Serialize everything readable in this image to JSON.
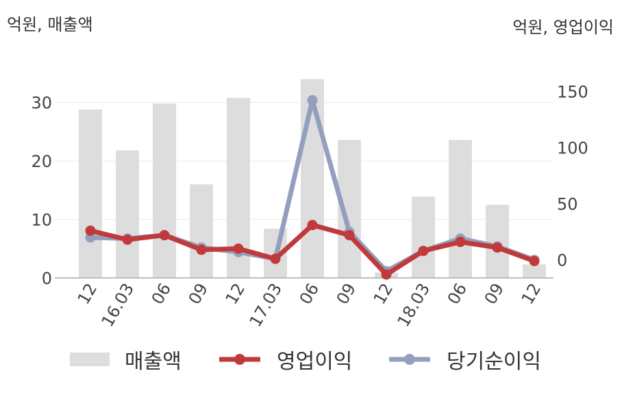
{
  "chart_data": {
    "type": "bar+line",
    "categories": [
      "12",
      "16.03",
      "06",
      "09",
      "12",
      "17.03",
      "06",
      "09",
      "12",
      "18.03",
      "06",
      "09",
      "12"
    ],
    "left_axis": {
      "unit": "억원, 매출액",
      "ticks": [
        "0",
        "10",
        "20",
        "30"
      ],
      "range": [
        0,
        35
      ]
    },
    "right_axis": {
      "unit": "억원, 영업이익",
      "ticks": [
        "0",
        "50",
        "100",
        "150"
      ],
      "range": [
        -16,
        166
      ]
    },
    "series": [
      {
        "name": "매출액",
        "type": "bar",
        "axis": "left",
        "color": "#dddddd",
        "values": [
          28.8,
          21.8,
          29.8,
          16.0,
          30.8,
          8.4,
          34.0,
          23.6,
          0.9,
          13.9,
          23.6,
          12.5,
          2.3
        ]
      },
      {
        "name": "영업이익",
        "type": "line",
        "axis": "right",
        "color": "#c0393b",
        "values": [
          26,
          18,
          22,
          9,
          10,
          1,
          31,
          22,
          -13,
          8,
          16,
          11,
          -1
        ]
      },
      {
        "name": "당기순이익",
        "type": "line",
        "axis": "right",
        "color": "#93a0bd",
        "values": [
          20,
          19,
          22,
          11,
          7,
          1,
          142,
          25,
          -10,
          8,
          19,
          12,
          0
        ]
      }
    ],
    "grid": true,
    "legend_position": "bottom"
  }
}
